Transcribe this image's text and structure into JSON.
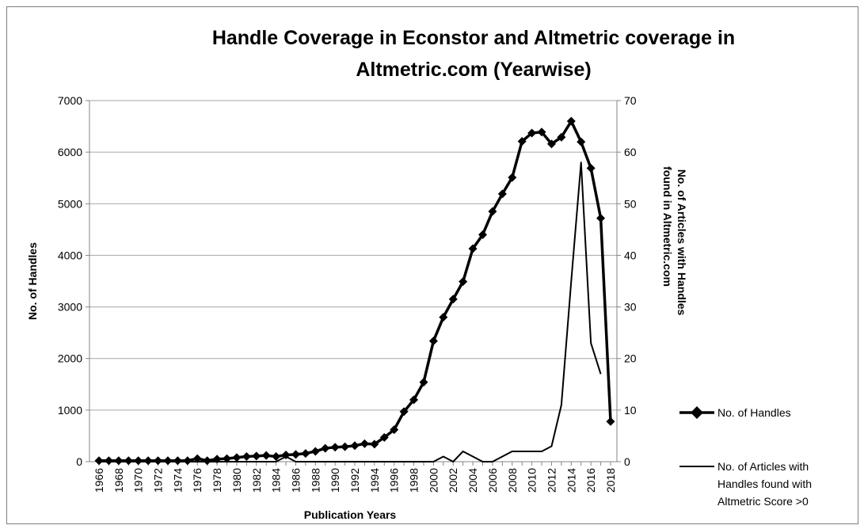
{
  "chart_data": {
    "type": "line",
    "title_lines": [
      "Handle Coverage in Econstor and Altmetric coverage in",
      "Altmetric.com (Yearwise)"
    ],
    "xlabel": "Publication Years",
    "ylabel": "No. of Handles",
    "y2label_lines": [
      "No. of Articles with  Handles",
      "found in Altmetric.com"
    ],
    "ylim": [
      0,
      7000
    ],
    "y2lim": [
      0,
      70
    ],
    "yticks": [
      0,
      1000,
      2000,
      3000,
      4000,
      5000,
      6000,
      7000
    ],
    "y2ticks": [
      0,
      10,
      20,
      30,
      40,
      50,
      60,
      70
    ],
    "grid": true,
    "legend_position": "right",
    "x": [
      1966,
      1967,
      1968,
      1969,
      1970,
      1971,
      1972,
      1973,
      1974,
      1975,
      1976,
      1977,
      1978,
      1979,
      1980,
      1981,
      1982,
      1983,
      1984,
      1985,
      1986,
      1987,
      1988,
      1989,
      1990,
      1991,
      1992,
      1993,
      1994,
      1995,
      1996,
      1997,
      1998,
      1999,
      2000,
      2001,
      2002,
      2003,
      2004,
      2005,
      2006,
      2007,
      2008,
      2009,
      2010,
      2011,
      2012,
      2013,
      2014,
      2015,
      2016,
      2017,
      2018
    ],
    "xtick_labels": [
      "1966",
      "1968",
      "1970",
      "1972",
      "1974",
      "1976",
      "1978",
      "1980",
      "1982",
      "1984",
      "1986",
      "1988",
      "1990",
      "1992",
      "1994",
      "1996",
      "1998",
      "2000",
      "2002",
      "2004",
      "2006",
      "2008",
      "2010",
      "2012",
      "2014",
      "2016",
      "2018"
    ],
    "series": [
      {
        "name": "No. of Handles",
        "axis": "left",
        "marker": "diamond",
        "color": "#000000",
        "values": [
          20,
          20,
          20,
          20,
          20,
          20,
          20,
          20,
          20,
          20,
          60,
          20,
          50,
          60,
          80,
          100,
          110,
          120,
          100,
          130,
          140,
          160,
          200,
          260,
          280,
          290,
          310,
          350,
          340,
          470,
          620,
          970,
          1200,
          1540,
          2340,
          2800,
          3150,
          3490,
          4130,
          4400,
          4850,
          5190,
          5510,
          6210,
          6370,
          6390,
          6160,
          6290,
          6600,
          6200,
          5690,
          4720,
          780
        ]
      },
      {
        "name": "No. of Articles with Handles found with Altmetric Score >0",
        "axis": "right",
        "marker": "none",
        "color": "#000000",
        "values": [
          0,
          0,
          0,
          0,
          0,
          0,
          0,
          0,
          0,
          0,
          0,
          0,
          0,
          0,
          0,
          0,
          0,
          0,
          0,
          1,
          0,
          0,
          0,
          0,
          0,
          0,
          0,
          0,
          0,
          0,
          0,
          0,
          0,
          0,
          0,
          1,
          0,
          2,
          1,
          0,
          0,
          1,
          2,
          2,
          2,
          2,
          3,
          11,
          35,
          58,
          23,
          17,
          null
        ]
      }
    ],
    "legend": [
      {
        "label": "No. of Handles"
      },
      {
        "label_lines": [
          "No. of Articles with",
          "Handles found with",
          "Altmetric Score >0"
        ]
      }
    ]
  }
}
